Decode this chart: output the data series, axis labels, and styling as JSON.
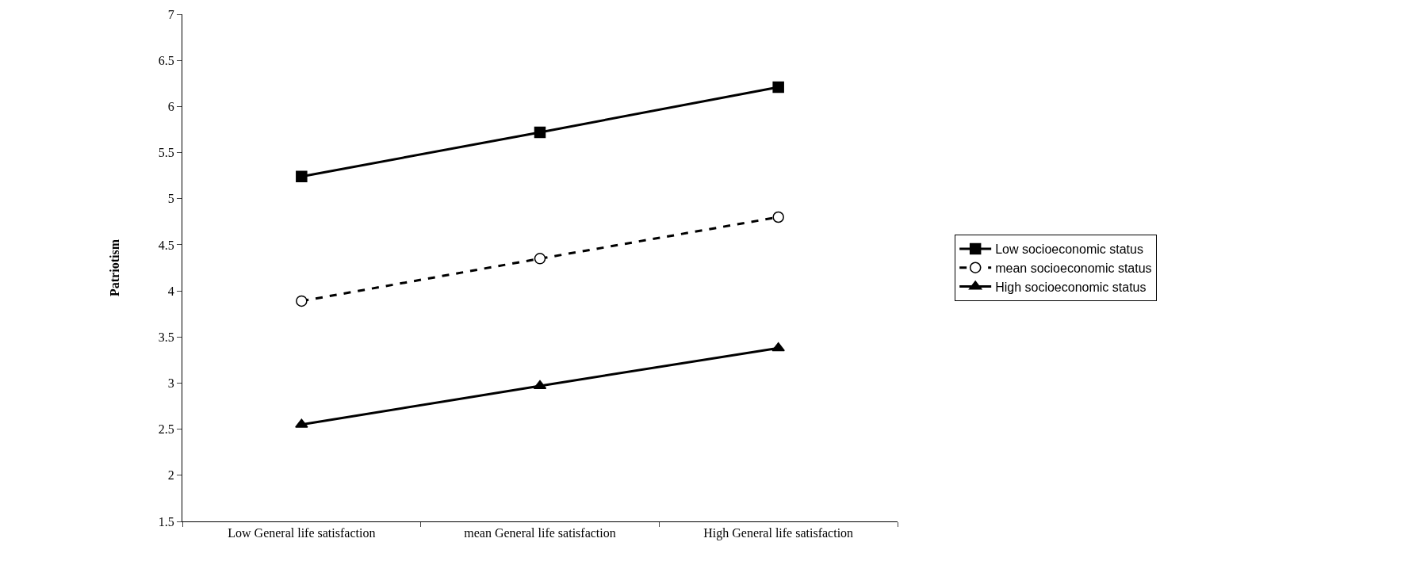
{
  "chart_data": {
    "type": "line",
    "ylabel": "Patriotism",
    "categories": [
      "Low General life satisfaction",
      "mean General life satisfaction",
      "High General life satisfaction"
    ],
    "series": [
      {
        "name": "Low socioeconomic status",
        "color": "#000000",
        "values": [
          5.24,
          5.72,
          6.21
        ],
        "marker": "square",
        "line_style": "solid"
      },
      {
        "name": "mean socioeconomic status",
        "color": "#000000",
        "values": [
          3.89,
          4.35,
          4.8
        ],
        "marker": "circle",
        "line_style": "dashed"
      },
      {
        "name": "High socioeconomic status",
        "color": "#000000",
        "values": [
          2.55,
          2.97,
          3.38
        ],
        "marker": "triangle",
        "line_style": "solid"
      }
    ],
    "ylim": [
      1.5,
      7
    ],
    "yticks": [
      1.5,
      2,
      2.5,
      3,
      3.5,
      4,
      4.5,
      5,
      5.5,
      6,
      6.5,
      7
    ],
    "grid": false,
    "legend": "right"
  }
}
